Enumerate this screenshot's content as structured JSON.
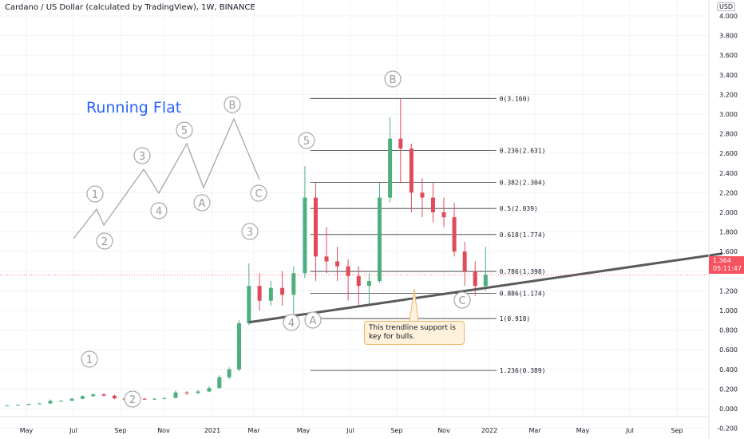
{
  "header": {
    "title": "Cardano / US Dollar (calculated by TradingView), 1W, BINANCE",
    "currency_badge": "USD"
  },
  "annotations": {
    "pattern_title": "Running Flat",
    "callout_text": "This trendline support is key for bulls.",
    "wave_labels": [
      "1",
      "2",
      "3",
      "4",
      "5",
      "A",
      "B",
      "C"
    ]
  },
  "current_price": {
    "value": "1.364",
    "countdown": "05:11:47",
    "color": "#f7525f"
  },
  "colors": {
    "up": "#26a69a",
    "down": "#ef5350",
    "up_candle": "#4caf7d",
    "down_candle": "#e24a5b",
    "trendline": "#555555",
    "title_blue": "#2962ff",
    "label_gray": "#a0a0a0"
  },
  "chart_data": {
    "type": "candlestick",
    "instrument": "Cardano / US Dollar",
    "interval": "1W",
    "exchange": "BINANCE",
    "y_axis": {
      "ticks": [
        "4.000",
        "3.800",
        "3.600",
        "3.400",
        "3.200",
        "3.000",
        "2.800",
        "2.600",
        "2.400",
        "2.200",
        "2.000",
        "1.800",
        "1.600",
        "1.400",
        "1.200",
        "1.000",
        "0.800",
        "0.600",
        "0.400",
        "0.200",
        "0.000",
        "-0.200"
      ],
      "tick_values": [
        4.0,
        3.8,
        3.6,
        3.4,
        3.2,
        3.0,
        2.8,
        2.6,
        2.4,
        2.2,
        2.0,
        1.8,
        1.6,
        1.4,
        1.2,
        1.0,
        0.8,
        0.6,
        0.4,
        0.2,
        0.0,
        -0.2
      ],
      "range": [
        -0.2,
        4.0
      ]
    },
    "x_axis": {
      "ticks": [
        "May",
        "Jul",
        "Sep",
        "Nov",
        "2021",
        "Mar",
        "May",
        "Jul",
        "Sep",
        "Nov",
        "2022",
        "Mar",
        "May",
        "Jul",
        "Sep"
      ],
      "tick_dates": [
        "2020-05-01",
        "2020-07-01",
        "2020-09-01",
        "2020-11-01",
        "2021-01-01",
        "2021-03-01",
        "2021-05-01",
        "2021-07-01",
        "2021-09-01",
        "2021-11-01",
        "2022-01-01",
        "2022-03-01",
        "2022-05-01",
        "2022-07-01",
        "2022-09-01"
      ]
    },
    "fibonacci_levels": [
      {
        "label": "0(3.160)",
        "value": 3.16
      },
      {
        "label": "0.236(2.631)",
        "value": 2.631
      },
      {
        "label": "0.382(2.304)",
        "value": 2.304
      },
      {
        "label": "0.5(2.039)",
        "value": 2.039
      },
      {
        "label": "0.618(1.774)",
        "value": 1.774
      },
      {
        "label": "0.786(1.398)",
        "value": 1.398
      },
      {
        "label": "0.886(1.174)",
        "value": 1.174
      },
      {
        "label": "1(0.918)",
        "value": 0.918
      },
      {
        "label": "1.236(0.389)",
        "value": 0.389
      }
    ],
    "trendline": {
      "from": {
        "date": "2021-02-22",
        "price": 0.88
      },
      "to": {
        "date": "2022-10-31",
        "price": 1.58
      }
    },
    "current_price": 1.364,
    "candles": [
      {
        "d": "2020-04-06",
        "o": 0.033,
        "h": 0.036,
        "l": 0.031,
        "c": 0.034
      },
      {
        "d": "2020-04-20",
        "o": 0.034,
        "h": 0.04,
        "l": 0.033,
        "c": 0.039
      },
      {
        "d": "2020-05-04",
        "o": 0.039,
        "h": 0.052,
        "l": 0.038,
        "c": 0.049
      },
      {
        "d": "2020-05-18",
        "o": 0.049,
        "h": 0.056,
        "l": 0.046,
        "c": 0.053
      },
      {
        "d": "2020-06-01",
        "o": 0.053,
        "h": 0.094,
        "l": 0.05,
        "c": 0.08
      },
      {
        "d": "2020-06-15",
        "o": 0.08,
        "h": 0.086,
        "l": 0.072,
        "c": 0.081
      },
      {
        "d": "2020-06-29",
        "o": 0.081,
        "h": 0.11,
        "l": 0.078,
        "c": 0.1
      },
      {
        "d": "2020-07-13",
        "o": 0.1,
        "h": 0.135,
        "l": 0.095,
        "c": 0.128
      },
      {
        "d": "2020-07-27",
        "o": 0.128,
        "h": 0.155,
        "l": 0.12,
        "c": 0.145
      },
      {
        "d": "2020-08-10",
        "o": 0.145,
        "h": 0.16,
        "l": 0.128,
        "c": 0.132
      },
      {
        "d": "2020-08-24",
        "o": 0.132,
        "h": 0.142,
        "l": 0.095,
        "c": 0.105
      },
      {
        "d": "2020-09-07",
        "o": 0.105,
        "h": 0.11,
        "l": 0.082,
        "c": 0.092
      },
      {
        "d": "2020-09-21",
        "o": 0.092,
        "h": 0.108,
        "l": 0.085,
        "c": 0.1
      },
      {
        "d": "2020-10-05",
        "o": 0.1,
        "h": 0.112,
        "l": 0.093,
        "c": 0.098
      },
      {
        "d": "2020-10-19",
        "o": 0.098,
        "h": 0.106,
        "l": 0.088,
        "c": 0.101
      },
      {
        "d": "2020-11-02",
        "o": 0.101,
        "h": 0.112,
        "l": 0.093,
        "c": 0.11
      },
      {
        "d": "2020-11-16",
        "o": 0.11,
        "h": 0.185,
        "l": 0.105,
        "c": 0.165
      },
      {
        "d": "2020-11-30",
        "o": 0.165,
        "h": 0.18,
        "l": 0.14,
        "c": 0.16
      },
      {
        "d": "2020-12-14",
        "o": 0.16,
        "h": 0.19,
        "l": 0.145,
        "c": 0.175
      },
      {
        "d": "2020-12-28",
        "o": 0.175,
        "h": 0.23,
        "l": 0.168,
        "c": 0.21
      },
      {
        "d": "2021-01-11",
        "o": 0.21,
        "h": 0.34,
        "l": 0.205,
        "c": 0.32
      },
      {
        "d": "2021-01-25",
        "o": 0.32,
        "h": 0.42,
        "l": 0.3,
        "c": 0.4
      },
      {
        "d": "2021-02-08",
        "o": 0.4,
        "h": 0.9,
        "l": 0.38,
        "c": 0.87
      },
      {
        "d": "2021-02-22",
        "o": 0.87,
        "h": 1.48,
        "l": 0.85,
        "c": 1.25
      },
      {
        "d": "2021-03-08",
        "o": 1.25,
        "h": 1.38,
        "l": 1.0,
        "c": 1.1
      },
      {
        "d": "2021-03-22",
        "o": 1.1,
        "h": 1.3,
        "l": 1.05,
        "c": 1.23
      },
      {
        "d": "2021-04-05",
        "o": 1.23,
        "h": 1.4,
        "l": 1.05,
        "c": 1.16
      },
      {
        "d": "2021-04-19",
        "o": 1.16,
        "h": 1.45,
        "l": 0.92,
        "c": 1.38
      },
      {
        "d": "2021-05-03",
        "o": 1.38,
        "h": 2.47,
        "l": 1.33,
        "c": 2.15
      },
      {
        "d": "2021-05-17",
        "o": 2.15,
        "h": 2.3,
        "l": 1.3,
        "c": 1.55
      },
      {
        "d": "2021-05-31",
        "o": 1.55,
        "h": 1.85,
        "l": 1.38,
        "c": 1.5
      },
      {
        "d": "2021-06-14",
        "o": 1.5,
        "h": 1.65,
        "l": 1.3,
        "c": 1.45
      },
      {
        "d": "2021-06-28",
        "o": 1.45,
        "h": 1.52,
        "l": 1.1,
        "c": 1.35
      },
      {
        "d": "2021-07-12",
        "o": 1.35,
        "h": 1.45,
        "l": 1.05,
        "c": 1.25
      },
      {
        "d": "2021-07-26",
        "o": 1.25,
        "h": 1.38,
        "l": 1.05,
        "c": 1.3
      },
      {
        "d": "2021-08-09",
        "o": 1.3,
        "h": 2.3,
        "l": 1.28,
        "c": 2.15
      },
      {
        "d": "2021-08-23",
        "o": 2.15,
        "h": 2.97,
        "l": 2.1,
        "c": 2.75
      },
      {
        "d": "2021-09-06",
        "o": 2.75,
        "h": 3.16,
        "l": 2.3,
        "c": 2.65
      },
      {
        "d": "2021-09-20",
        "o": 2.65,
        "h": 2.7,
        "l": 2.0,
        "c": 2.2
      },
      {
        "d": "2021-10-04",
        "o": 2.2,
        "h": 2.35,
        "l": 1.95,
        "c": 2.15
      },
      {
        "d": "2021-10-18",
        "o": 2.15,
        "h": 2.3,
        "l": 1.9,
        "c": 2.0
      },
      {
        "d": "2021-11-01",
        "o": 2.0,
        "h": 2.15,
        "l": 1.85,
        "c": 1.95
      },
      {
        "d": "2021-11-15",
        "o": 1.95,
        "h": 2.1,
        "l": 1.55,
        "c": 1.6
      },
      {
        "d": "2021-11-29",
        "o": 1.6,
        "h": 1.7,
        "l": 1.25,
        "c": 1.4
      },
      {
        "d": "2021-12-13",
        "o": 1.4,
        "h": 1.5,
        "l": 1.15,
        "c": 1.25
      },
      {
        "d": "2021-12-27",
        "o": 1.25,
        "h": 1.65,
        "l": 1.2,
        "c": 1.364
      }
    ]
  }
}
